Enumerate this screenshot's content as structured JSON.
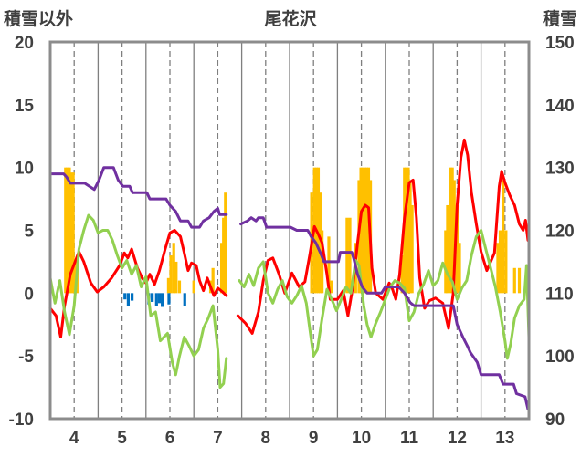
{
  "chart_data": {
    "type": "line",
    "title": "尾花沢",
    "y_left_label": "積雪以外",
    "y_right_label": "積雪",
    "x_range": [
      3.5,
      13.5
    ],
    "x_ticks": [
      4,
      5,
      6,
      7,
      8,
      9,
      10,
      11,
      12,
      13
    ],
    "y_left_range": [
      -10,
      20
    ],
    "y_left_ticks": [
      -10,
      -5,
      0,
      5,
      10,
      15,
      20
    ],
    "y_right_range": [
      90,
      150
    ],
    "y_right_ticks": [
      90,
      100,
      110,
      120,
      130,
      140,
      150
    ],
    "grid": "vertical-dashed",
    "colors": {
      "temperature": "#ff0000",
      "green": "#92d050",
      "snow_depth": "#7030a0",
      "snowfall_bars": "#ffc000",
      "blue_bars": "#0070c0"
    },
    "snowfall_bars": [
      [
        3.82,
        10
      ],
      [
        3.86,
        10
      ],
      [
        3.9,
        10
      ],
      [
        3.94,
        9.6
      ],
      [
        3.98,
        9.6
      ],
      [
        4.02,
        2.5
      ],
      [
        4.06,
        2.5
      ],
      [
        5.97,
        1.2
      ],
      [
        6.02,
        3
      ],
      [
        6.08,
        4
      ],
      [
        6.13,
        2.5
      ],
      [
        6.2,
        1
      ],
      [
        6.5,
        1
      ],
      [
        6.85,
        1
      ],
      [
        6.9,
        2
      ],
      [
        7.08,
        4
      ],
      [
        7.12,
        6
      ],
      [
        7.16,
        8
      ],
      [
        8.96,
        8
      ],
      [
        9.02,
        10
      ],
      [
        9.06,
        10
      ],
      [
        9.1,
        10
      ],
      [
        9.14,
        8
      ],
      [
        9.18,
        5
      ],
      [
        9.32,
        4.5
      ],
      [
        9.38,
        1
      ],
      [
        9.7,
        6
      ],
      [
        9.76,
        6
      ],
      [
        9.88,
        4
      ],
      [
        9.95,
        9
      ],
      [
        9.99,
        10
      ],
      [
        10.03,
        10
      ],
      [
        10.07,
        10
      ],
      [
        10.11,
        10
      ],
      [
        10.15,
        10
      ],
      [
        10.19,
        9
      ],
      [
        10.85,
        3
      ],
      [
        10.9,
        10
      ],
      [
        10.94,
        10
      ],
      [
        10.98,
        10
      ],
      [
        11.02,
        9
      ],
      [
        11.06,
        7
      ],
      [
        11.76,
        5
      ],
      [
        11.8,
        7
      ],
      [
        11.86,
        10
      ],
      [
        11.9,
        10
      ],
      [
        11.94,
        9
      ],
      [
        12.0,
        7
      ],
      [
        12.05,
        4
      ],
      [
        12.85,
        4
      ],
      [
        12.9,
        5
      ],
      [
        12.96,
        9
      ],
      [
        13.02,
        5
      ],
      [
        13.2,
        2
      ],
      [
        13.3,
        2
      ]
    ],
    "blue_bars": [
      [
        5.06,
        -0.5
      ],
      [
        5.13,
        -1
      ],
      [
        5.21,
        -0.6
      ],
      [
        5.56,
        -0.9
      ],
      [
        5.63,
        -0.7
      ],
      [
        5.72,
        -1
      ],
      [
        5.78,
        -0.8
      ],
      [
        5.84,
        -1.1
      ],
      [
        5.98,
        -0.9
      ],
      [
        6.31,
        -1
      ]
    ],
    "series": [
      {
        "key": "temperature",
        "axis": "left",
        "points": [
          [
            3.5,
            -1.2
          ],
          [
            3.62,
            -1.8
          ],
          [
            3.72,
            -3.5
          ],
          [
            3.8,
            -1
          ],
          [
            3.92,
            1.5
          ],
          [
            4.1,
            3.3
          ],
          [
            4.2,
            2.5
          ],
          [
            4.35,
            0.8
          ],
          [
            4.48,
            0.1
          ],
          [
            4.62,
            0.5
          ],
          [
            4.78,
            1.2
          ],
          [
            4.95,
            2.2
          ],
          [
            5.05,
            3.2
          ],
          [
            5.12,
            2.8
          ],
          [
            5.2,
            3.5
          ],
          [
            5.32,
            2
          ],
          [
            5.42,
            1.2
          ],
          [
            5.5,
            0.8
          ],
          [
            5.58,
            1.5
          ],
          [
            5.68,
            0.7
          ],
          [
            5.78,
            1.8
          ],
          [
            5.9,
            3.5
          ],
          [
            6.0,
            4.8
          ],
          [
            6.1,
            5
          ],
          [
            6.22,
            4.5
          ],
          [
            6.3,
            3.2
          ],
          [
            6.38,
            1.8
          ],
          [
            6.45,
            2.4
          ],
          [
            6.55,
            2.2
          ],
          [
            6.62,
            1
          ],
          [
            6.7,
            0.2
          ],
          [
            6.78,
            1.2
          ],
          [
            6.85,
            0.5
          ],
          [
            6.92,
            -0.2
          ],
          [
            7.0,
            0.4
          ],
          [
            7.1,
            0.1
          ],
          [
            7.18,
            -0.2
          ],
          null,
          [
            7.42,
            -1.8
          ],
          [
            7.58,
            -2.4
          ],
          [
            7.72,
            -3.2
          ],
          [
            7.85,
            -1.5
          ],
          [
            7.95,
            1
          ],
          [
            8.05,
            2.6
          ],
          [
            8.15,
            2.8
          ],
          [
            8.28,
            1.5
          ],
          [
            8.4,
            0
          ],
          [
            8.55,
            1.6
          ],
          [
            8.7,
            0.5
          ],
          [
            8.82,
            0.9
          ],
          [
            8.92,
            3
          ],
          [
            9.02,
            5.3
          ],
          [
            9.1,
            4.7
          ],
          [
            9.18,
            4
          ],
          [
            9.28,
            1.5
          ],
          [
            9.35,
            -0.5
          ],
          [
            9.5,
            -0.5
          ],
          [
            9.62,
            0.2
          ],
          [
            9.72,
            -1.8
          ],
          [
            9.82,
            0.5
          ],
          [
            9.92,
            4
          ],
          [
            10.0,
            6.5
          ],
          [
            10.08,
            7
          ],
          [
            10.15,
            6.8
          ],
          [
            10.22,
            2
          ],
          [
            10.3,
            0
          ],
          [
            10.45,
            -0.5
          ],
          [
            10.58,
            0.8
          ],
          [
            10.65,
            0.3
          ],
          [
            10.72,
            -0.5
          ],
          [
            10.8,
            1.5
          ],
          [
            10.9,
            6
          ],
          [
            11.0,
            8.8
          ],
          [
            11.08,
            9
          ],
          [
            11.15,
            6
          ],
          [
            11.22,
            1.2
          ],
          [
            11.32,
            -1.2
          ],
          [
            11.42,
            -0.6
          ],
          [
            11.55,
            -0.4
          ],
          [
            11.7,
            -0.8
          ],
          [
            11.82,
            -2.8
          ],
          [
            11.92,
            0
          ],
          [
            12.0,
            7
          ],
          [
            12.08,
            10.8
          ],
          [
            12.15,
            12.2
          ],
          [
            12.22,
            11
          ],
          [
            12.3,
            8
          ],
          [
            12.4,
            5.5
          ],
          [
            12.5,
            3.3
          ],
          [
            12.62,
            1.8
          ],
          [
            12.78,
            3.2
          ],
          [
            12.88,
            8.5
          ],
          [
            12.93,
            9.7
          ],
          [
            13.0,
            8.8
          ],
          [
            13.1,
            7.8
          ],
          [
            13.2,
            7
          ],
          [
            13.3,
            5.5
          ],
          [
            13.38,
            5
          ],
          [
            13.43,
            5.8
          ],
          [
            13.48,
            4.2
          ]
        ]
      },
      {
        "key": "green",
        "axis": "left",
        "points": [
          [
            3.5,
            1.2
          ],
          [
            3.6,
            -0.8
          ],
          [
            3.7,
            1
          ],
          [
            3.8,
            -1.5
          ],
          [
            3.9,
            -3.3
          ],
          [
            4.0,
            -1
          ],
          [
            4.1,
            3.5
          ],
          [
            4.2,
            5
          ],
          [
            4.3,
            6.2
          ],
          [
            4.4,
            5.8
          ],
          [
            4.5,
            4.8
          ],
          [
            4.6,
            5
          ],
          [
            4.7,
            5
          ],
          [
            4.8,
            4.2
          ],
          [
            4.9,
            3
          ],
          [
            5.0,
            2
          ],
          [
            5.1,
            2.6
          ],
          [
            5.2,
            1.5
          ],
          [
            5.3,
            2.2
          ],
          [
            5.4,
            0.5
          ],
          [
            5.5,
            1.3
          ],
          [
            5.6,
            -1.8
          ],
          [
            5.7,
            -1.5
          ],
          [
            5.8,
            -3.8
          ],
          [
            5.95,
            -3.2
          ],
          [
            6.05,
            -5.5
          ],
          [
            6.12,
            -6.5
          ],
          [
            6.2,
            -5
          ],
          [
            6.3,
            -3.5
          ],
          [
            6.4,
            -4.2
          ],
          [
            6.5,
            -5
          ],
          [
            6.6,
            -4.5
          ],
          [
            6.7,
            -2.8
          ],
          [
            6.8,
            -2
          ],
          [
            6.9,
            -1
          ],
          [
            7.0,
            -4.5
          ],
          [
            7.05,
            -7.5
          ],
          [
            7.12,
            -7.2
          ],
          [
            7.18,
            -5.2
          ],
          null,
          [
            7.45,
            1
          ],
          [
            7.55,
            0.5
          ],
          [
            7.65,
            1.5
          ],
          [
            7.75,
            0.6
          ],
          [
            7.85,
            2
          ],
          [
            7.95,
            2.5
          ],
          [
            8.05,
            0
          ],
          [
            8.15,
            -0.8
          ],
          [
            8.25,
            0.3
          ],
          [
            8.35,
            1
          ],
          [
            8.45,
            -0.3
          ],
          [
            8.55,
            -0.8
          ],
          [
            8.65,
            -0.2
          ],
          [
            8.75,
            0.6
          ],
          [
            8.85,
            -0.8
          ],
          [
            8.92,
            -2.8
          ],
          [
            9.0,
            -5
          ],
          [
            9.08,
            -4.5
          ],
          [
            9.18,
            -2
          ],
          [
            9.28,
            0.3
          ],
          [
            9.38,
            -0.5
          ],
          [
            9.48,
            -1.4
          ],
          [
            9.58,
            -0.5
          ],
          [
            9.68,
            0.5
          ],
          [
            9.78,
            0
          ],
          [
            9.88,
            2.6
          ],
          [
            9.95,
            2.2
          ],
          [
            10.05,
            -1
          ],
          [
            10.12,
            -2.5
          ],
          [
            10.2,
            -3.5
          ],
          [
            10.3,
            -2.4
          ],
          [
            10.4,
            -1.5
          ],
          [
            10.5,
            -0.5
          ],
          [
            10.6,
            0.5
          ],
          [
            10.7,
            1
          ],
          [
            10.8,
            0.8
          ],
          [
            10.9,
            0.4
          ],
          [
            11.0,
            -2.2
          ],
          [
            11.1,
            -1.5
          ],
          [
            11.2,
            0
          ],
          [
            11.3,
            0.7
          ],
          [
            11.4,
            1.8
          ],
          [
            11.5,
            0.6
          ],
          [
            11.6,
            1
          ],
          [
            11.7,
            2.4
          ],
          [
            11.8,
            1.5
          ],
          [
            11.9,
            0.9
          ],
          [
            12.0,
            -0.5
          ],
          [
            12.1,
            0.4
          ],
          [
            12.2,
            1
          ],
          [
            12.3,
            3
          ],
          [
            12.4,
            4.5
          ],
          [
            12.5,
            5
          ],
          [
            12.6,
            3.5
          ],
          [
            12.7,
            2
          ],
          [
            12.8,
            0.5
          ],
          [
            12.9,
            -1.5
          ],
          [
            13.0,
            -3.8
          ],
          [
            13.05,
            -5.2
          ],
          [
            13.12,
            -4
          ],
          [
            13.2,
            -2
          ],
          [
            13.3,
            -1
          ],
          [
            13.4,
            -0.5
          ],
          [
            13.45,
            2.2
          ],
          [
            13.5,
            -3.5
          ]
        ]
      },
      {
        "key": "snow_depth",
        "axis": "right",
        "points": [
          [
            3.5,
            129
          ],
          [
            3.78,
            129
          ],
          [
            3.84,
            128.5
          ],
          [
            3.92,
            127.5
          ],
          [
            4.22,
            127.5
          ],
          [
            4.42,
            126.5
          ],
          [
            4.52,
            128
          ],
          [
            4.62,
            130
          ],
          [
            4.82,
            130
          ],
          [
            4.92,
            128
          ],
          [
            5.02,
            127
          ],
          [
            5.16,
            127
          ],
          [
            5.22,
            126
          ],
          [
            5.52,
            126
          ],
          [
            5.58,
            125
          ],
          [
            5.92,
            125
          ],
          [
            6.0,
            124
          ],
          [
            6.12,
            123
          ],
          [
            6.22,
            121.5
          ],
          [
            6.38,
            121.5
          ],
          [
            6.45,
            120.5
          ],
          [
            6.62,
            120.5
          ],
          [
            6.7,
            121.5
          ],
          [
            6.82,
            122
          ],
          [
            6.92,
            123
          ],
          [
            7.0,
            123.5
          ],
          [
            7.04,
            122.5
          ],
          [
            7.18,
            122.5
          ],
          null,
          [
            7.48,
            121
          ],
          [
            7.62,
            121.5
          ],
          [
            7.7,
            122
          ],
          [
            7.8,
            121.5
          ],
          [
            7.85,
            122
          ],
          [
            7.95,
            122
          ],
          [
            8.02,
            120.5
          ],
          [
            8.52,
            120.5
          ],
          [
            8.65,
            120
          ],
          [
            8.88,
            120
          ],
          [
            8.95,
            119
          ],
          [
            9.05,
            118
          ],
          [
            9.14,
            116.5
          ],
          [
            9.22,
            115
          ],
          [
            9.52,
            115
          ],
          [
            9.56,
            116.5
          ],
          [
            9.8,
            116.5
          ],
          [
            9.84,
            115.5
          ],
          [
            9.92,
            113
          ],
          [
            10.02,
            111
          ],
          [
            10.12,
            110
          ],
          [
            10.42,
            110
          ],
          [
            10.5,
            111
          ],
          [
            10.78,
            111
          ],
          [
            10.9,
            110
          ],
          [
            11.02,
            108.5
          ],
          [
            11.1,
            108
          ],
          [
            11.92,
            108
          ],
          [
            12.0,
            105
          ],
          [
            12.12,
            103
          ],
          [
            12.22,
            101.5
          ],
          [
            12.28,
            100.5
          ],
          [
            12.42,
            99
          ],
          [
            12.5,
            97
          ],
          [
            12.88,
            97
          ],
          [
            12.96,
            95.5
          ],
          [
            13.18,
            95.5
          ],
          [
            13.24,
            94
          ],
          [
            13.42,
            93.5
          ],
          [
            13.48,
            91.5
          ]
        ]
      }
    ]
  }
}
